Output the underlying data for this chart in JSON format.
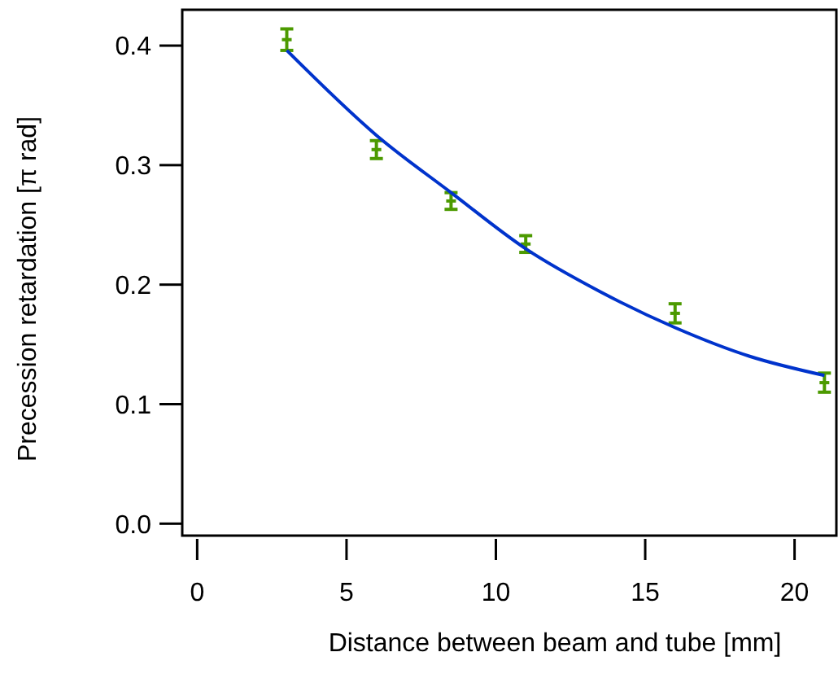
{
  "chart_data": {
    "type": "scatter",
    "xlabel": "Distance between beam and tube [mm]",
    "ylabel": "Precession retardation [π rad]",
    "xlim": [
      -0.5,
      21.4
    ],
    "ylim": [
      -0.01,
      0.43
    ],
    "xticks": [
      0,
      5,
      10,
      15,
      20
    ],
    "yticks": [
      {
        "value": 0,
        "label": "0.0"
      },
      0.1,
      0.2,
      0.3,
      0.4
    ],
    "grid": false,
    "series": [
      {
        "type": "scatter",
        "marker": "square",
        "color": "#4c9a00",
        "x": [
          3,
          6,
          8.5,
          11,
          16,
          21
        ],
        "values": [
          0.405,
          0.313,
          0.27,
          0.234,
          0.176,
          0.118
        ],
        "errors": [
          0.009,
          0.0075,
          0.007,
          0.007,
          0.008,
          0.008
        ]
      },
      {
        "type": "line",
        "color": "#0033cc",
        "line_style": "solid",
        "x": [
          3,
          6,
          8.5,
          11,
          13.5,
          16,
          18.5,
          21
        ],
        "values": [
          0.396,
          0.325,
          0.277,
          0.23,
          0.194,
          0.164,
          0.14,
          0.124
        ]
      }
    ]
  }
}
